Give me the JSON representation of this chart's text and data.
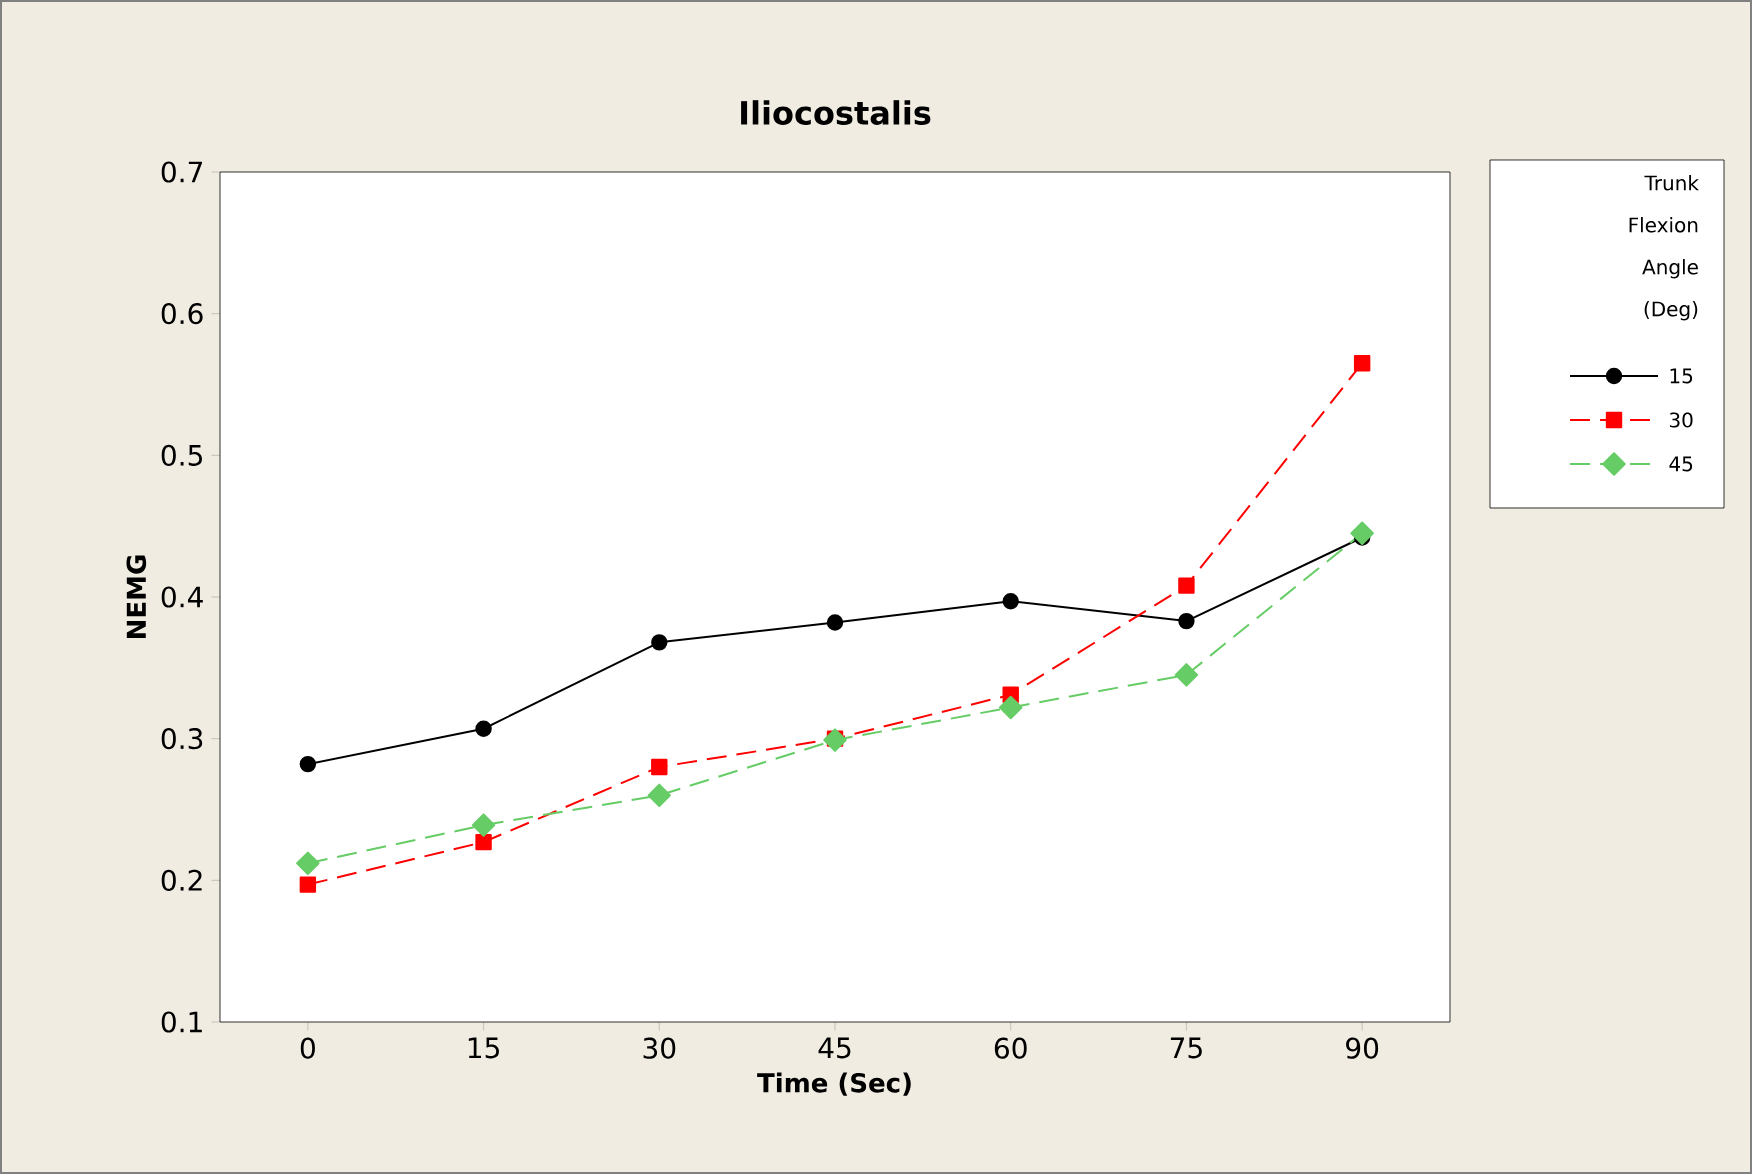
{
  "chart_data": {
    "type": "line",
    "title": "Iliocostalis",
    "xlabel": "Time (Sec)",
    "ylabel": "NEMG",
    "legend_title": "Trunk Flexion Angle (Deg)",
    "legend": "top right",
    "x": [
      0,
      15,
      30,
      45,
      60,
      75,
      90
    ],
    "xlim": [
      -7.5,
      97.5
    ],
    "xticks": [
      0,
      15,
      30,
      45,
      60,
      75,
      90
    ],
    "ylim": [
      0.1,
      0.7
    ],
    "yticks": [
      0.1,
      0.2,
      0.3,
      0.4,
      0.5,
      0.6,
      0.7
    ],
    "series": [
      {
        "name": "15",
        "color": "#000000",
        "marker": "circle",
        "line_style": "solid",
        "values": [
          0.282,
          0.307,
          0.368,
          0.382,
          0.397,
          0.383,
          0.442
        ]
      },
      {
        "name": "30",
        "color": "#ff0000",
        "marker": "square",
        "line_style": "dashed",
        "values": [
          0.197,
          0.227,
          0.28,
          0.3,
          0.331,
          0.408,
          0.565
        ]
      },
      {
        "name": "45",
        "color": "#66cc66",
        "marker": "diamond",
        "line_style": "dashed",
        "values": [
          0.212,
          0.239,
          0.26,
          0.299,
          0.322,
          0.345,
          0.445
        ]
      }
    ]
  }
}
